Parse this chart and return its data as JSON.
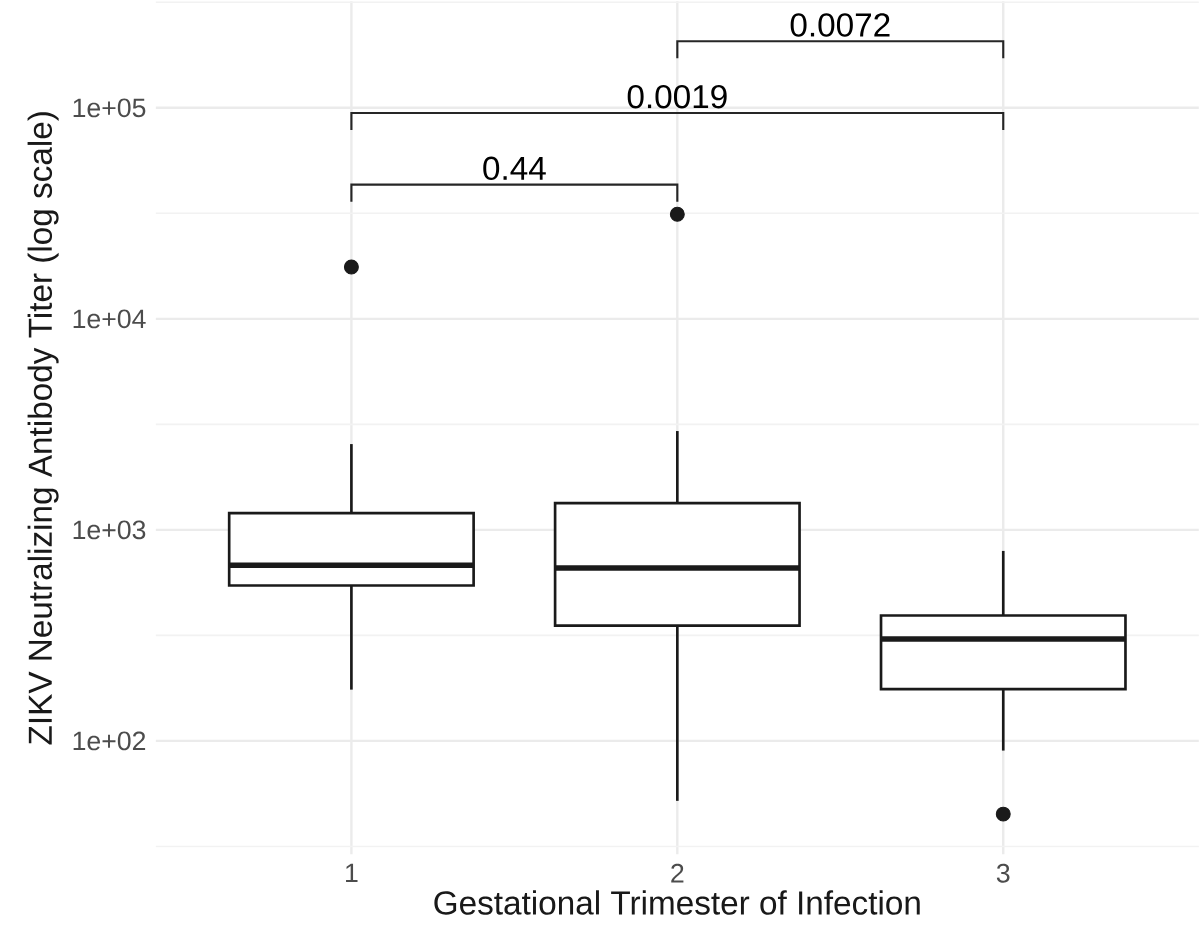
{
  "chart_data": {
    "type": "box",
    "xlabel": "Gestational Trimester of Infection",
    "ylabel": "ZIKV Neutralizing Antibody Titer (log scale)",
    "categories": [
      "1",
      "2",
      "3"
    ],
    "boxes": [
      {
        "low": 175,
        "q1": 545,
        "median": 680,
        "q3": 1200,
        "high": 2550,
        "outliers": [
          17600
        ]
      },
      {
        "low": 52,
        "q1": 352,
        "median": 660,
        "q3": 1340,
        "high": 2940,
        "outliers": [
          31300
        ]
      },
      {
        "low": 90,
        "q1": 176,
        "median": 304,
        "q3": 393,
        "high": 795,
        "outliers": [
          45
        ]
      }
    ],
    "color": "#1a1a1a",
    "log": true,
    "grid": true,
    "ylim": [
      29,
      320000
    ],
    "yticks": [
      {
        "value": 100,
        "label": "1e+02"
      },
      {
        "value": 1000,
        "label": "1e+03"
      },
      {
        "value": 10000,
        "label": "1e+04"
      },
      {
        "value": 100000,
        "label": "1e+05"
      }
    ],
    "annotations": [
      "0.44",
      "0.0019",
      "0.0072"
    ]
  }
}
